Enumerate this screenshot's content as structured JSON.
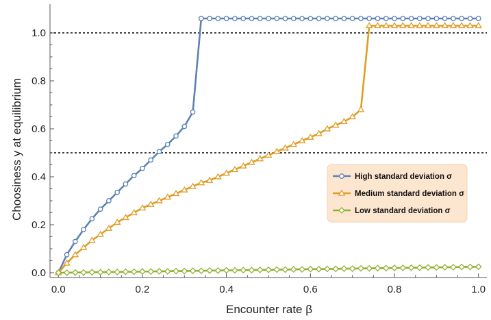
{
  "chart_data": {
    "type": "line",
    "title": "",
    "xlabel": "Encounter rate β",
    "ylabel": "Choosiness y at equilibrium",
    "xlim": [
      -0.02,
      1.02
    ],
    "ylim": [
      -0.02,
      1.12
    ],
    "xticks": [
      0.0,
      0.2,
      0.4,
      0.6,
      0.8,
      1.0
    ],
    "xtick_labels": [
      "0.0",
      "0.2",
      "0.4",
      "0.6",
      "0.8",
      "1.0"
    ],
    "yticks": [
      0.0,
      0.2,
      0.4,
      0.6,
      0.8,
      1.0
    ],
    "ytick_labels": [
      "0.0",
      "0.2",
      "0.4",
      "0.6",
      "0.8",
      "1.0"
    ],
    "grid": false,
    "legend_position": "center-right",
    "reference_lines": [
      {
        "y": 1.0,
        "style": "dotted",
        "color": "#000000"
      },
      {
        "y": 0.5,
        "style": "dotted",
        "color": "#000000"
      }
    ],
    "series": [
      {
        "name": "High standard deviation σ",
        "color": "#5e81b5",
        "marker": "circle",
        "x": [
          0.0,
          0.02,
          0.04,
          0.06,
          0.08,
          0.1,
          0.12,
          0.14,
          0.16,
          0.18,
          0.2,
          0.22,
          0.24,
          0.26,
          0.28,
          0.3,
          0.32,
          0.34,
          0.36,
          0.38,
          0.4,
          0.42,
          0.44,
          0.46,
          0.48,
          0.5,
          0.52,
          0.54,
          0.56,
          0.58,
          0.6,
          0.62,
          0.64,
          0.66,
          0.68,
          0.7,
          0.72,
          0.74,
          0.76,
          0.78,
          0.8,
          0.82,
          0.84,
          0.86,
          0.88,
          0.9,
          0.92,
          0.94,
          0.96,
          0.98,
          1.0
        ],
        "y": [
          0.0,
          0.075,
          0.13,
          0.18,
          0.225,
          0.265,
          0.3,
          0.335,
          0.37,
          0.405,
          0.435,
          0.47,
          0.505,
          0.535,
          0.57,
          0.61,
          0.67,
          1.06,
          1.06,
          1.06,
          1.06,
          1.06,
          1.06,
          1.06,
          1.06,
          1.06,
          1.06,
          1.06,
          1.06,
          1.06,
          1.06,
          1.06,
          1.06,
          1.06,
          1.06,
          1.06,
          1.06,
          1.06,
          1.06,
          1.06,
          1.06,
          1.06,
          1.06,
          1.06,
          1.06,
          1.06,
          1.06,
          1.06,
          1.06,
          1.06,
          1.06
        ]
      },
      {
        "name": "Medium standard deviation σ",
        "color": "#e19c24",
        "marker": "triangle",
        "x": [
          0.0,
          0.02,
          0.04,
          0.06,
          0.08,
          0.1,
          0.12,
          0.14,
          0.16,
          0.18,
          0.2,
          0.22,
          0.24,
          0.26,
          0.28,
          0.3,
          0.32,
          0.34,
          0.36,
          0.38,
          0.4,
          0.42,
          0.44,
          0.46,
          0.48,
          0.5,
          0.52,
          0.54,
          0.56,
          0.58,
          0.6,
          0.62,
          0.64,
          0.66,
          0.68,
          0.7,
          0.72,
          0.74,
          0.76,
          0.78,
          0.8,
          0.82,
          0.84,
          0.86,
          0.88,
          0.9,
          0.92,
          0.94,
          0.96,
          0.98,
          1.0
        ],
        "y": [
          0.0,
          0.04,
          0.075,
          0.105,
          0.135,
          0.16,
          0.185,
          0.21,
          0.23,
          0.25,
          0.27,
          0.285,
          0.3,
          0.315,
          0.33,
          0.345,
          0.36,
          0.375,
          0.385,
          0.4,
          0.415,
          0.43,
          0.445,
          0.46,
          0.475,
          0.49,
          0.505,
          0.52,
          0.535,
          0.55,
          0.565,
          0.58,
          0.6,
          0.615,
          0.63,
          0.65,
          0.68,
          1.03,
          1.03,
          1.03,
          1.03,
          1.03,
          1.03,
          1.03,
          1.03,
          1.03,
          1.03,
          1.03,
          1.03,
          1.03,
          1.03
        ]
      },
      {
        "name": "Low standard deviation σ",
        "color": "#8fb131",
        "marker": "diamond",
        "x": [
          0.0,
          0.02,
          0.04,
          0.06,
          0.08,
          0.1,
          0.12,
          0.14,
          0.16,
          0.18,
          0.2,
          0.22,
          0.24,
          0.26,
          0.28,
          0.3,
          0.32,
          0.34,
          0.36,
          0.38,
          0.4,
          0.42,
          0.44,
          0.46,
          0.48,
          0.5,
          0.52,
          0.54,
          0.56,
          0.58,
          0.6,
          0.62,
          0.64,
          0.66,
          0.68,
          0.7,
          0.72,
          0.74,
          0.76,
          0.78,
          0.8,
          0.82,
          0.84,
          0.86,
          0.88,
          0.9,
          0.92,
          0.94,
          0.96,
          0.98,
          1.0
        ],
        "y": [
          0.0,
          0.0,
          0.001,
          0.001,
          0.002,
          0.002,
          0.003,
          0.003,
          0.004,
          0.004,
          0.005,
          0.005,
          0.006,
          0.006,
          0.007,
          0.007,
          0.008,
          0.008,
          0.009,
          0.009,
          0.01,
          0.01,
          0.011,
          0.011,
          0.012,
          0.012,
          0.013,
          0.013,
          0.014,
          0.014,
          0.015,
          0.015,
          0.016,
          0.016,
          0.017,
          0.017,
          0.018,
          0.018,
          0.019,
          0.019,
          0.02,
          0.02,
          0.021,
          0.021,
          0.022,
          0.022,
          0.023,
          0.023,
          0.024,
          0.024,
          0.025
        ]
      }
    ],
    "legend_box_color": "#fde6d0"
  }
}
